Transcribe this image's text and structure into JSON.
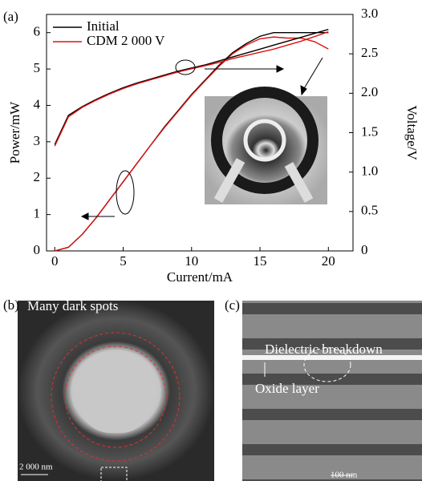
{
  "chart_data": {
    "type": "line",
    "panel_label": "(a)",
    "xlabel": "Current/mA",
    "ylabel": "Power/mW",
    "y2label": "Voltage/V",
    "x": [
      0,
      1,
      2,
      3,
      4,
      5,
      6,
      7,
      8,
      9,
      10,
      11,
      12,
      13,
      14,
      15,
      16,
      17,
      18,
      19,
      20
    ],
    "xlim": [
      -0.6,
      21.8
    ],
    "xticks": [
      0,
      5,
      10,
      15,
      20
    ],
    "ylim": [
      0,
      6.5
    ],
    "yticks": [
      0,
      1,
      2,
      3,
      4,
      5,
      6
    ],
    "y2lim": [
      0,
      3
    ],
    "y2ticks": [
      0,
      0.5,
      {
        "value": 1,
        "label": "1.0"
      },
      1.5,
      {
        "value": 2,
        "label": "2.0"
      },
      2.5,
      {
        "value": 3,
        "label": "3.0"
      }
    ],
    "series": [
      {
        "name": "Initial",
        "color": "#000000",
        "values": [
          0,
          0.1,
          0.45,
          0.9,
          1.4,
          1.9,
          2.4,
          2.9,
          3.4,
          3.85,
          4.3,
          4.7,
          5.1,
          5.45,
          5.7,
          5.9,
          6.0,
          6.0,
          6.0,
          6.0,
          6.0
        ]
      },
      {
        "name": "CDM 2 000 V",
        "color": "#e01010",
        "values": [
          0,
          0.1,
          0.45,
          0.9,
          1.4,
          1.9,
          2.4,
          2.9,
          3.38,
          3.83,
          4.28,
          4.68,
          5.07,
          5.42,
          5.66,
          5.83,
          5.88,
          5.85,
          5.85,
          5.75,
          5.55
        ]
      },
      {
        "name": "Initial",
        "color": "#000000",
        "axis": "y2",
        "values": [
          1.35,
          1.72,
          1.83,
          1.92,
          2.0,
          2.07,
          2.13,
          2.18,
          2.23,
          2.28,
          2.32,
          2.36,
          2.41,
          2.46,
          2.51,
          2.56,
          2.61,
          2.66,
          2.71,
          2.76,
          2.81
        ]
      },
      {
        "name": "CDM 2 000 V",
        "color": "#e01010",
        "axis": "y2",
        "values": [
          1.33,
          1.7,
          1.82,
          1.91,
          1.99,
          2.06,
          2.12,
          2.17,
          2.22,
          2.27,
          2.31,
          2.35,
          2.39,
          2.44,
          2.48,
          2.52,
          2.56,
          2.61,
          2.66,
          2.72,
          2.78
        ]
      }
    ]
  },
  "images": [
    {
      "label": "(b)",
      "caption": "Many dark spots",
      "scale": "2 000 nm"
    },
    {
      "label": "(c)",
      "caption": "Dielectric breakdown",
      "note": "Oxide layer",
      "scale": "100 nm"
    }
  ]
}
